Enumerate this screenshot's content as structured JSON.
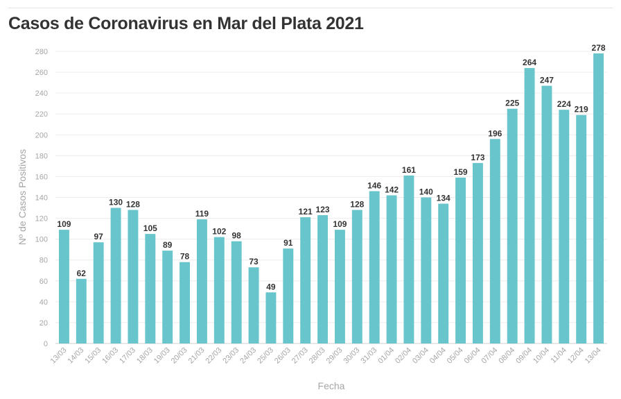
{
  "chart_data": {
    "type": "bar",
    "title": "Casos de Coronavirus en Mar del Plata 2021",
    "xlabel": "Fecha",
    "ylabel": "Nº de Casos Positivos",
    "ylim": [
      0,
      280
    ],
    "yticks": [
      0,
      20,
      40,
      60,
      80,
      100,
      120,
      140,
      160,
      180,
      200,
      220,
      240,
      260,
      280
    ],
    "grid": true,
    "bar_color": "#67c5cb",
    "categories": [
      "13/03",
      "14/03",
      "15/03",
      "16/03",
      "17/03",
      "18/03",
      "19/03",
      "20/03",
      "21/03",
      "22/03",
      "23/03",
      "24/03",
      "25/03",
      "26/03",
      "27/03",
      "28/03",
      "29/03",
      "30/03",
      "31/03",
      "01/04",
      "02/04",
      "03/04",
      "04/04",
      "05/04",
      "06/04",
      "07/04",
      "08/04",
      "09/04",
      "10/04",
      "11/04",
      "12/04",
      "13/04"
    ],
    "values": [
      109,
      62,
      97,
      130,
      128,
      105,
      89,
      78,
      119,
      102,
      98,
      73,
      49,
      91,
      121,
      123,
      109,
      128,
      146,
      142,
      161,
      140,
      134,
      159,
      173,
      196,
      225,
      264,
      247,
      224,
      219,
      278
    ]
  }
}
